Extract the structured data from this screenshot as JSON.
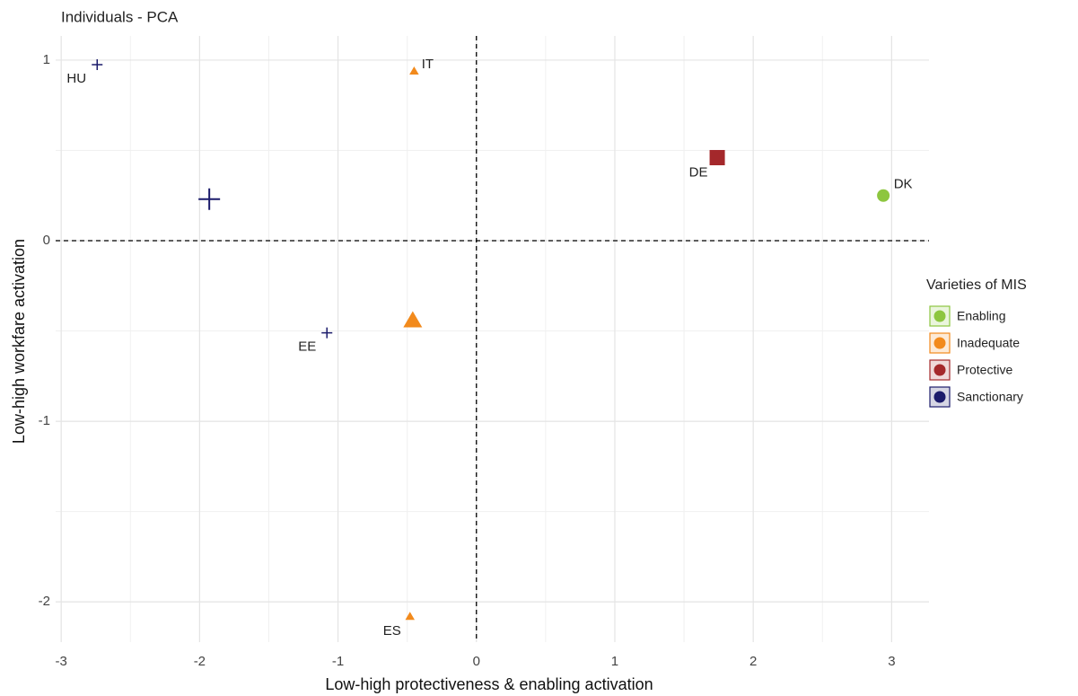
{
  "chart_data": {
    "type": "scatter",
    "title": "Individuals - PCA",
    "x_label": "Low-high protectiveness & enabling activation",
    "y_label": "Low-high workfare activation",
    "legend_title": "Varieties of MIS",
    "legend_position": "right",
    "grid": true,
    "reference_lines": {
      "x": 0,
      "y": 0
    },
    "xlim": [
      -3.04,
      3.27
    ],
    "xticks": [
      -3,
      -2,
      -1,
      0,
      1,
      2,
      3
    ],
    "ylim": [
      -2.223,
      1.134
    ],
    "yticks": [
      -2,
      -1,
      0,
      1
    ],
    "series": [
      {
        "name": "Enabling",
        "color": "#8dc63f",
        "shape": "circle",
        "x": [
          2.94
        ],
        "y": [
          0.25
        ],
        "labels": [
          "DK"
        ],
        "marker_sizes": [
          14
        ]
      },
      {
        "name": "Inadequate",
        "color": "#f28a1c",
        "shape": "triangle",
        "x": [
          -0.45,
          -0.48,
          -0.46
        ],
        "y": [
          0.94,
          -2.08,
          -0.44
        ],
        "labels": [
          "IT",
          "ES",
          null
        ],
        "marker_sizes": [
          10,
          10,
          20
        ]
      },
      {
        "name": "Protective",
        "color": "#a4282b",
        "shape": "square",
        "x": [
          1.74
        ],
        "y": [
          0.46
        ],
        "labels": [
          "DE"
        ],
        "marker_sizes": [
          17
        ]
      },
      {
        "name": "Sanctionary",
        "color": "#1b1b6b",
        "shape": "plus",
        "x": [
          -2.74,
          -1.08,
          -1.93
        ],
        "y": [
          0.975,
          -0.51,
          0.23
        ],
        "labels": [
          "HU",
          "EE",
          null
        ],
        "marker_sizes": [
          12,
          12,
          24
        ]
      }
    ]
  }
}
